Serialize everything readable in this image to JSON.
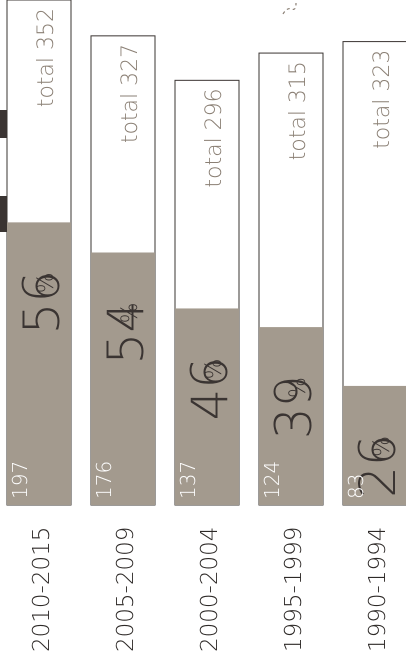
{
  "chart_data": {
    "type": "bar",
    "categories": [
      "2010-2015",
      "2005-2009",
      "2000-2004",
      "1995-1999",
      "1990-1994"
    ],
    "series": [
      {
        "values": [
          197,
          176,
          137,
          124,
          83
        ]
      }
    ],
    "totals": [
      352,
      327,
      296,
      315,
      323
    ],
    "percentages": [
      56,
      54,
      46,
      39,
      26
    ],
    "total_labels": [
      "total 352",
      "total 327",
      "total 296",
      "total 315",
      "total 323"
    ],
    "count_labels": [
      "197",
      "176",
      "137",
      "124",
      "83"
    ],
    "percent_labels": [
      "56",
      "54",
      "46",
      "39",
      "26"
    ],
    "percent_sign": "%",
    "ylim": [
      0,
      352
    ],
    "colors": {
      "filled": "#a39a8e",
      "outline": "#3a3432",
      "text_dark": "#3a3432",
      "text_light": "#ffffff",
      "total_text": "#8a7f74"
    },
    "grid": false,
    "legend": "none"
  }
}
